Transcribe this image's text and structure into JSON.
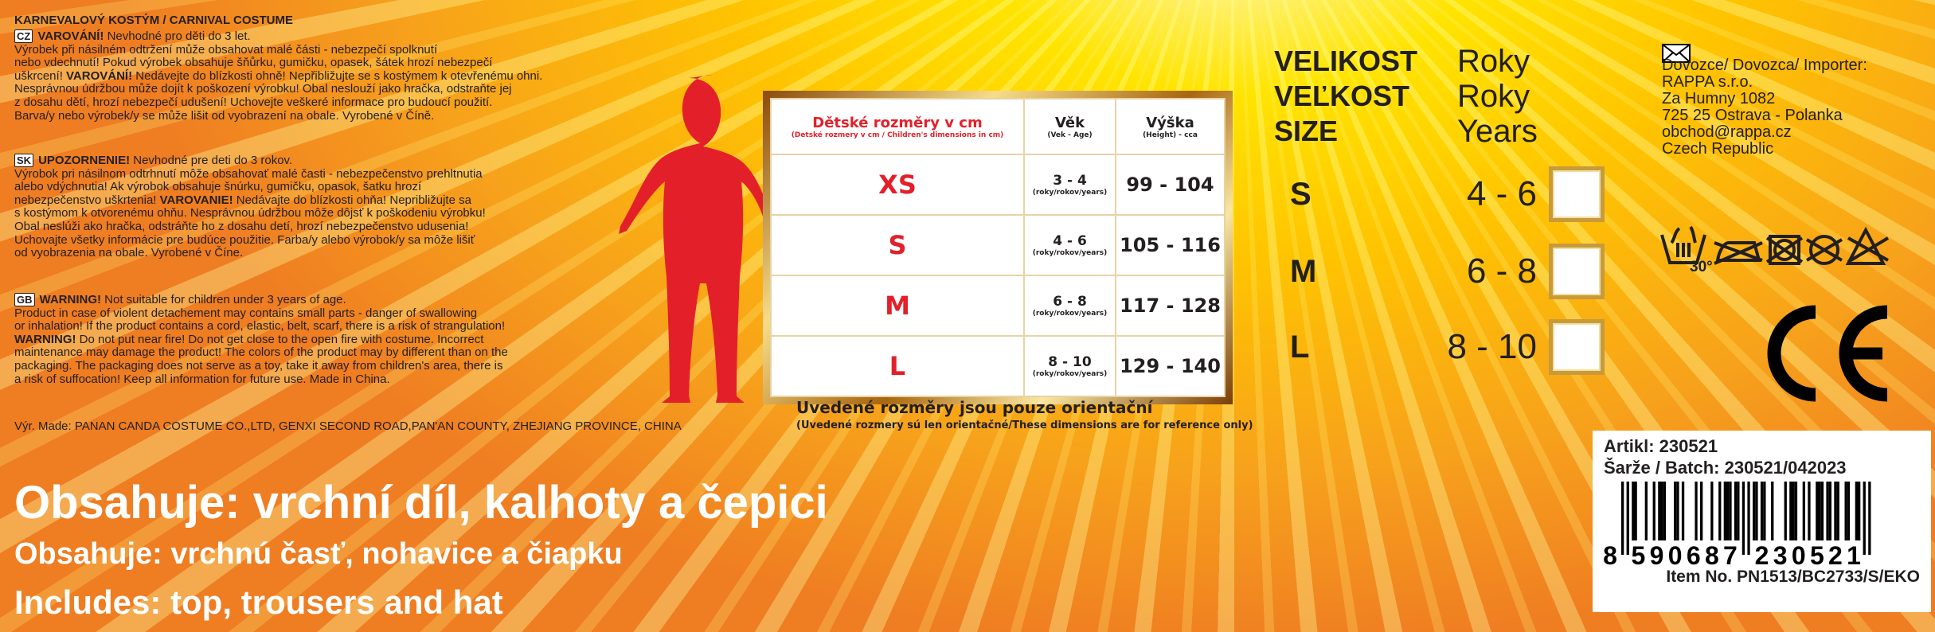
{
  "header": {
    "title": "KARNEVALOVÝ KOSTÝM / CARNIVAL COSTUME"
  },
  "warnings": [
    {
      "flag": "CZ",
      "head": "VAROVÁNÍ!",
      "lines": [
        "Nevhodné pro děti do 3 let.",
        "Výrobek při násilném odtržení může obsahovat malé části -  nebezpečí spolknutí",
        "nebo vdechnutí! Pokud výrobek obsahuje šňůrku, gumičku, opasek, šátek hrozí nebezpečí",
        "uškrcení!",
        "VAROVÁNÍ!",
        "Nedávejte do blízkosti ohně! Nepřibližujte se s kostýmem k otevřenému ohni.",
        "Nesprávnou údržbou může dojít k poškození výrobku! Obal neslouží jako hračka, odstraňte jej",
        "z dosahu dětí, hrozí nebezpečí udušení! Uchovejte veškeré informace pro budoucí použití.",
        "Barva/y nebo výrobek/y se může lišit od vyobrazení na obale. Vyrobené v Číně."
      ]
    },
    {
      "flag": "SK",
      "head": "UPOZORNENIE!",
      "lines": [
        "Nevhodné pre deti do 3 rokov.",
        "Výrobok pri násilnom odtrhnutí môže obsahovať malé časti - nebezpečenstvo prehltnutia",
        "alebo vdýchnutia! Ak výrobok obsahuje šnúrku, gumičku, opasok, šatku hrozí",
        "nebezpečenstvo uškrtenia!",
        "VAROVANIE!",
        "Nedávajte do blízkosti ohňa! Nepribližujte sa",
        "s kostýmom k otvorenému ohňu. Nesprávnou údržbou môže dôjsť k poškodeniu výrobku!",
        "Obal neslúži ako hračka, odstráňte ho z dosahu detí, hrozí nebezpečenstvo udusenia!",
        "Uchovajte všetky informácie pre budúce použitie. Farba/y alebo výrobok/y sa môže lišiť",
        "od vyobrazenia na obale. Vyrobené v Číne."
      ]
    },
    {
      "flag": "GB",
      "head": "WARNING!",
      "lines": [
        "Not suitable for children under 3 years of age.",
        "Product in case of violent detachement may contains small parts - danger of swallowing",
        "or inhalation! If the product contains a cord, elastic, belt, scarf, there is a risk of strangulation!",
        "",
        "WARNING!",
        "Do not put near fire! Do not get close to the open fire with costume. Incorrect",
        "maintenance may damage the product! The colors of the product may by different than on the",
        "packaging. The packaging does not serve as a toy, take it away from children's area, there is",
        "a risk of suffocation! Keep all information for future use. Made in China."
      ]
    }
  ],
  "manufacturer": "Výr. Made: PANAN CANDA COSTUME CO.,LTD, GENXI SECOND ROAD,PAN'AN COUNTY, ZHEJIANG PROVINCE, CHINA",
  "contents": [
    "Obsahuje: vrchní díl, kalhoty a čepici",
    "Obsahuje: vrchnú časť, nohavice a čiapku",
    "Includes: top, trousers and hat"
  ],
  "size_table": {
    "headers": [
      {
        "title": "Dětské rozměry v cm",
        "sub": "(Detské rozmery  v cm / Children's dimensions in cm)"
      },
      {
        "title": "Věk",
        "sub": "(Vek - Age)"
      },
      {
        "title": "Výška",
        "sub": "(Height) - cca"
      }
    ],
    "rows": [
      {
        "size": "XS",
        "age": "3 - 4",
        "age_unit": "(roky/rokov/years)",
        "height": "99 - 104"
      },
      {
        "size": "S",
        "age": "4 - 6",
        "age_unit": "(roky/rokov/years)",
        "height": "105 - 116"
      },
      {
        "size": "M",
        "age": "6 - 8",
        "age_unit": "(roky/rokov/years)",
        "height": "117 - 128"
      },
      {
        "size": "L",
        "age": "8 - 10",
        "age_unit": "(roky/rokov/years)",
        "height": "129 - 140"
      }
    ],
    "note": "Uvedené rozměry jsou pouze orientační",
    "note_sub": "(Uvedené rozmery sú len orientačné/These dimensions are for reference only)"
  },
  "size_select": {
    "labels": [
      {
        "k": "VELIKOST",
        "v": "Roky"
      },
      {
        "k": "VEĽKOST",
        "v": "Roky"
      },
      {
        "k": "SIZE",
        "v": "Years"
      }
    ],
    "options": [
      {
        "size": "S",
        "age": "4 - 6",
        "checked": false
      },
      {
        "size": "M",
        "age": "6 - 8",
        "checked": false
      },
      {
        "size": "L",
        "age": "8 - 10",
        "checked": false
      }
    ]
  },
  "importer": {
    "icon": "envelope-icon",
    "lines": [
      "Dovozce/ Dovozca/ Importer:",
      "RAPPA s.r.o.",
      "Za Humny 1082",
      "725 25 Ostrava - Polanka",
      "obchod@rappa.cz",
      "Czech Republic"
    ]
  },
  "care": {
    "wash_temp": "30°",
    "icons": [
      "wash-30-icon",
      "no-iron-icon",
      "no-tumble-dry-icon",
      "no-dry-clean-icon",
      "no-bleach-icon"
    ]
  },
  "ce_mark": "CE",
  "product_label": {
    "article": "Artikl: 230521",
    "batch": "Šarže / Batch: 230521/042023",
    "ean": "8590687230521",
    "item_no": "Item No. PN1513/BC2733/S/EKO"
  },
  "colors": {
    "accent_red": "#e3202a",
    "gold": "#c89a3a",
    "background_yellow": "#ffe400",
    "background_orange": "#ef7d22"
  }
}
